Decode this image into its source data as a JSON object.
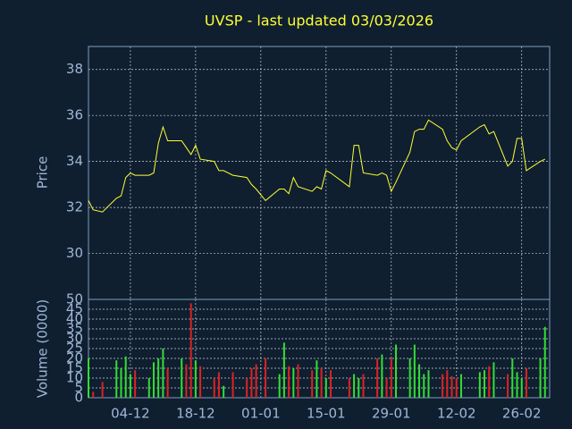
{
  "chart_data": [
    {
      "type": "line",
      "title": "UVSP - last updated 03/03/2026",
      "ylabel": "Price",
      "color": "#ffff33",
      "grid": true,
      "x": [
        "25-11",
        "26-11",
        "28-11",
        "01-12",
        "02-12",
        "03-12",
        "04-12",
        "05-12",
        "08-12",
        "09-12",
        "10-12",
        "11-12",
        "12-12",
        "15-12",
        "16-12",
        "17-12",
        "18-12",
        "19-12",
        "22-12",
        "23-12",
        "24-12",
        "26-12",
        "29-12",
        "30-12",
        "31-12",
        "02-01",
        "05-01",
        "06-01",
        "07-01",
        "08-01",
        "09-01",
        "12-01",
        "13-01",
        "14-01",
        "15-01",
        "16-01",
        "20-01",
        "21-01",
        "22-01",
        "23-01",
        "26-01",
        "27-01",
        "28-01",
        "29-01",
        "30-01",
        "02-02",
        "03-02",
        "04-02",
        "05-02",
        "06-02",
        "09-02",
        "10-02",
        "11-02",
        "12-02",
        "13-02",
        "17-02",
        "18-02",
        "19-02",
        "20-02",
        "23-02",
        "24-02",
        "25-02",
        "26-02",
        "27-02",
        "02-03",
        "03-03"
      ],
      "values": [
        32.3,
        31.9,
        31.8,
        32.4,
        32.5,
        33.3,
        33.5,
        33.4,
        33.4,
        33.5,
        34.8,
        35.5,
        34.9,
        34.9,
        34.6,
        34.3,
        34.7,
        34.1,
        34.0,
        33.6,
        33.6,
        33.4,
        33.3,
        33.0,
        32.8,
        32.3,
        32.8,
        32.8,
        32.6,
        33.3,
        32.9,
        32.7,
        32.9,
        32.8,
        33.6,
        33.5,
        32.9,
        34.7,
        34.7,
        33.5,
        33.4,
        33.5,
        33.4,
        32.7,
        33.1,
        34.4,
        35.3,
        35.4,
        35.4,
        35.8,
        35.4,
        34.9,
        34.6,
        34.5,
        34.9,
        35.5,
        35.6,
        35.2,
        35.3,
        33.8,
        34.0,
        35.0,
        35.0,
        33.6,
        34.0,
        34.1
      ],
      "xlim": [
        "25-11",
        "04-03"
      ],
      "ylim": [
        28,
        39
      ],
      "yticks": [
        30,
        32,
        34,
        36,
        38
      ]
    },
    {
      "type": "bar",
      "ylabel": "Volume (0000)",
      "up_color": "#33dd33",
      "down_color": "#dd2222",
      "grid": true,
      "x": [
        "25-11",
        "26-11",
        "28-11",
        "01-12",
        "02-12",
        "03-12",
        "04-12",
        "05-12",
        "08-12",
        "09-12",
        "10-12",
        "11-12",
        "12-12",
        "15-12",
        "16-12",
        "17-12",
        "18-12",
        "19-12",
        "22-12",
        "23-12",
        "24-12",
        "26-12",
        "29-12",
        "30-12",
        "31-12",
        "02-01",
        "05-01",
        "06-01",
        "07-01",
        "08-01",
        "09-01",
        "12-01",
        "13-01",
        "14-01",
        "15-01",
        "16-01",
        "20-01",
        "21-01",
        "22-01",
        "23-01",
        "26-01",
        "27-01",
        "28-01",
        "29-01",
        "30-01",
        "02-02",
        "03-02",
        "04-02",
        "05-02",
        "06-02",
        "09-02",
        "10-02",
        "11-02",
        "12-02",
        "13-02",
        "17-02",
        "18-02",
        "19-02",
        "20-02",
        "23-02",
        "24-02",
        "25-02",
        "26-02",
        "27-02",
        "02-03",
        "03-03"
      ],
      "values": [
        20,
        3,
        8,
        19,
        15,
        21,
        12,
        14,
        10,
        18,
        20,
        25,
        15,
        20,
        17,
        48,
        19,
        16,
        10,
        13,
        6,
        13,
        10,
        15,
        17,
        20,
        12,
        28,
        16,
        15,
        17,
        14,
        19,
        15,
        10,
        14,
        10,
        12,
        10,
        12,
        20,
        22,
        10,
        20,
        27,
        20,
        27,
        17,
        12,
        14,
        12,
        14,
        11,
        10,
        12,
        13,
        14,
        16,
        18,
        12,
        20,
        13,
        10,
        15,
        20,
        36
      ],
      "xlim": [
        "25-11",
        "04-03"
      ],
      "xticks": [
        "04-12",
        "18-12",
        "01-01",
        "15-01",
        "29-01",
        "12-02",
        "26-02"
      ],
      "ylim": [
        0,
        50
      ],
      "yticks": [
        0,
        5,
        10,
        15,
        20,
        25,
        30,
        35,
        40,
        45,
        50
      ]
    }
  ]
}
